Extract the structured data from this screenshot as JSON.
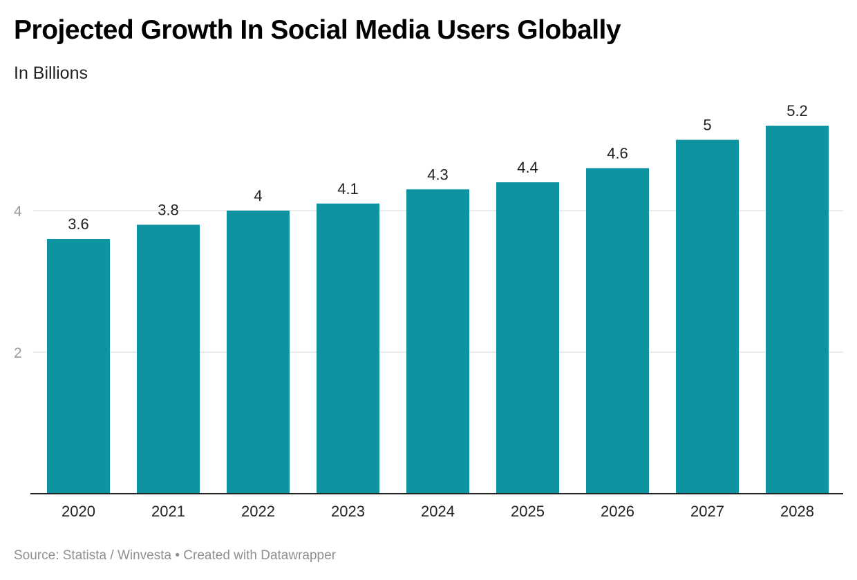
{
  "header": {
    "title": "Projected Growth In Social Media Users Globally",
    "subtitle": "In Billions"
  },
  "footer": {
    "source": "Source: Statista / Winvesta • Created with Datawrapper"
  },
  "colors": {
    "bar": "#0f93a1",
    "grid": "#e6e6e6",
    "baseline": "#222222"
  },
  "chart_data": {
    "type": "bar",
    "title": "Projected Growth In Social Media Users Globally",
    "subtitle": "In Billions",
    "categories": [
      "2020",
      "2021",
      "2022",
      "2023",
      "2024",
      "2025",
      "2026",
      "2027",
      "2028"
    ],
    "values": [
      3.6,
      3.8,
      4,
      4.1,
      4.3,
      4.4,
      4.6,
      5,
      5.2
    ],
    "value_labels": [
      "3.6",
      "3.8",
      "4",
      "4.1",
      "4.3",
      "4.4",
      "4.6",
      "5",
      "5.2"
    ],
    "yticks": [
      2,
      4
    ],
    "ytick_labels": [
      "2",
      "4"
    ],
    "ylim": [
      0,
      5.2
    ],
    "grid": true,
    "legend": "none",
    "xlabel": "",
    "ylabel": ""
  }
}
